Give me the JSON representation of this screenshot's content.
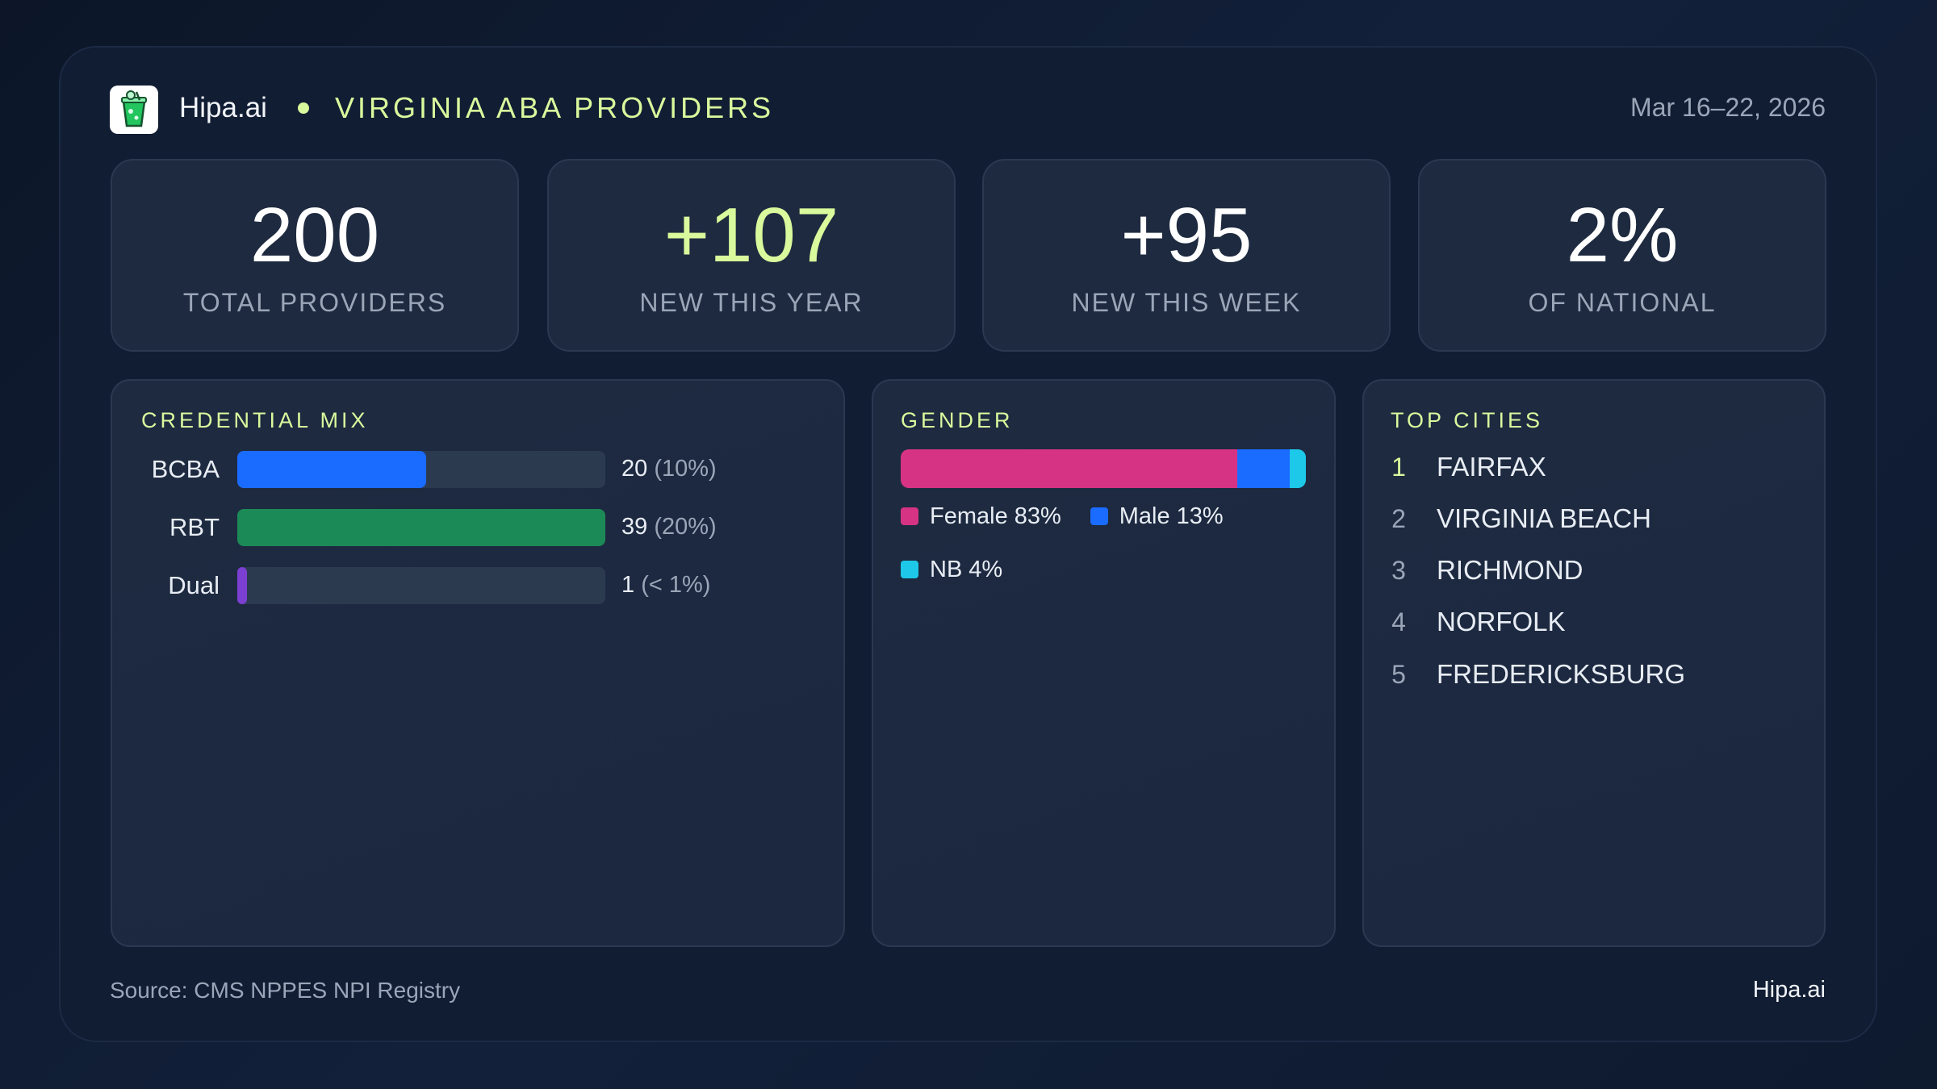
{
  "header": {
    "brand": "Hipa.ai",
    "title": "VIRGINIA ABA PROVIDERS",
    "date_range": "Mar 16–22, 2026"
  },
  "stats": [
    {
      "value": "200",
      "label": "TOTAL PROVIDERS",
      "color": "#ffffff"
    },
    {
      "value": "+107",
      "label": "NEW THIS YEAR",
      "color": "#d9f99d"
    },
    {
      "value": "+95",
      "label": "NEW THIS WEEK",
      "color": "#ffffff"
    },
    {
      "value": "2%",
      "label": "OF NATIONAL",
      "color": "#ffffff"
    }
  ],
  "credential_mix": {
    "title": "CREDENTIAL MIX",
    "rows": [
      {
        "name": "BCBA",
        "value": 20,
        "share": "(10%)",
        "color": "#1a6bff"
      },
      {
        "name": "RBT",
        "value": 39,
        "share": "(20%)",
        "color": "#1c8a56"
      },
      {
        "name": "Dual",
        "value": 1,
        "share": "(< 1%)",
        "color": "#7b3fd1"
      }
    ]
  },
  "gender": {
    "title": "GENDER",
    "segments": [
      {
        "name": "Female",
        "value": 83,
        "value_label": "83%",
        "color": "#d63384"
      },
      {
        "name": "Male",
        "value": 13,
        "value_label": "13%",
        "color": "#1a6bff"
      },
      {
        "name": "NB",
        "value": 4,
        "value_label": "4%",
        "color": "#1ec8e8"
      }
    ]
  },
  "top_cities": {
    "title": "TOP CITIES",
    "rows": [
      {
        "rank": 1,
        "name": "FAIRFAX"
      },
      {
        "rank": 2,
        "name": "VIRGINIA BEACH"
      },
      {
        "rank": 3,
        "name": "RICHMOND"
      },
      {
        "rank": 4,
        "name": "NORFOLK"
      },
      {
        "rank": 5,
        "name": "FREDERICKSBURG"
      }
    ]
  },
  "footer": {
    "source": "Source: CMS NPPES NPI Registry",
    "brand": "Hipa.ai"
  }
}
